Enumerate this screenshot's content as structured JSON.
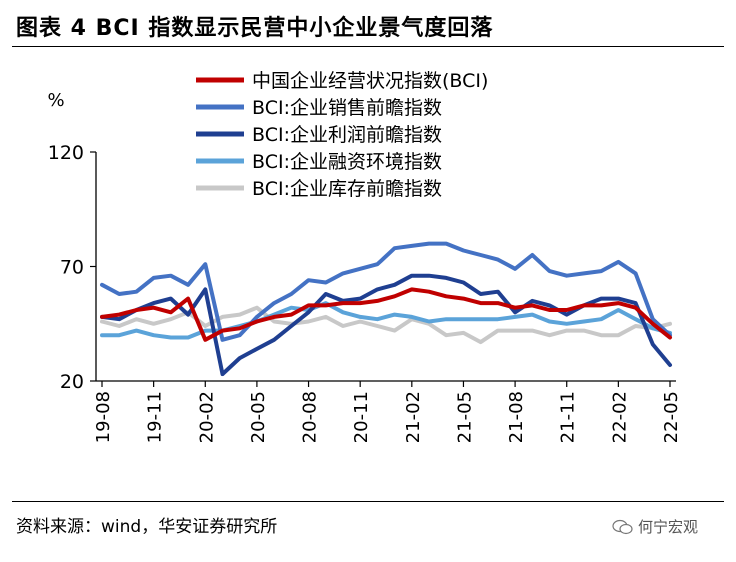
{
  "header": {
    "title": "图表 4 BCI 指数显示民营中小企业景气度回落"
  },
  "footer": {
    "source": "资料来源：wind，华安证券研究所",
    "watermark": "何宁宏观",
    "watermark_icon": "wechat-icon"
  },
  "colors": {
    "red": "#C00000",
    "blue": "#4472C4",
    "navy": "#1F3F91",
    "light_blue": "#5BA3D9",
    "gray": "#C8C8C8"
  },
  "chart_data": {
    "type": "line",
    "ylabel": "%",
    "ylim": [
      20,
      120
    ],
    "yticks": [
      20,
      70,
      120
    ],
    "legend_position": "top",
    "x": [
      "19-08",
      "19-09",
      "19-10",
      "19-11",
      "19-12",
      "20-01",
      "20-02",
      "20-03",
      "20-04",
      "20-05",
      "20-06",
      "20-07",
      "20-08",
      "20-09",
      "20-10",
      "20-11",
      "20-12",
      "21-01",
      "21-02",
      "21-03",
      "21-04",
      "21-05",
      "21-06",
      "21-07",
      "21-08",
      "21-09",
      "21-10",
      "21-11",
      "21-12",
      "22-01",
      "22-02",
      "22-03",
      "22-04",
      "22-05"
    ],
    "xticks": [
      "19-08",
      "19-11",
      "20-02",
      "20-05",
      "20-08",
      "20-11",
      "21-02",
      "21-05",
      "21-08",
      "21-11",
      "22-02",
      "22-05"
    ],
    "series": [
      {
        "name": "中国企业经营状况指数(BCI)",
        "color": "#C00000",
        "values": [
          48,
          49,
          51,
          52,
          50,
          56,
          38,
          42,
          43,
          46,
          48,
          49,
          53,
          53,
          54,
          54,
          55,
          57,
          60,
          59,
          57,
          56,
          54,
          54,
          52,
          53,
          51,
          51,
          53,
          53,
          54,
          52,
          45,
          39
        ]
      },
      {
        "name": "BCI:企业销售前瞻指数",
        "color": "#4472C4",
        "values": [
          62,
          58,
          59,
          65,
          66,
          62,
          71,
          38,
          40,
          48,
          54,
          58,
          64,
          63,
          67,
          69,
          71,
          78,
          79,
          80,
          80,
          77,
          75,
          73,
          69,
          75,
          68,
          66,
          67,
          68,
          72,
          67,
          47,
          40
        ]
      },
      {
        "name": "BCI:企业利润前瞻指数",
        "color": "#1F3F91",
        "values": [
          48,
          47,
          51,
          54,
          56,
          49,
          60,
          23,
          30,
          34,
          38,
          44,
          50,
          58,
          55,
          56,
          60,
          62,
          66,
          66,
          65,
          63,
          58,
          59,
          50,
          55,
          53,
          49,
          53,
          56,
          56,
          54,
          36,
          27
        ]
      },
      {
        "name": "BCI:企业融资环境指数",
        "color": "#5BA3D9",
        "values": [
          40,
          40,
          42,
          40,
          39,
          39,
          42,
          42,
          44,
          46,
          49,
          52,
          51,
          54,
          50,
          48,
          47,
          49,
          48,
          46,
          47,
          47,
          47,
          47,
          48,
          49,
          46,
          45,
          46,
          47,
          51,
          47,
          43,
          41
        ]
      },
      {
        "name": "BCI:企业库存前瞻指数",
        "color": "#C8C8C8",
        "values": [
          46,
          44,
          47,
          45,
          47,
          50,
          44,
          48,
          49,
          52,
          46,
          45,
          46,
          48,
          44,
          46,
          44,
          42,
          47,
          45,
          40,
          41,
          37,
          42,
          42,
          42,
          40,
          42,
          42,
          40,
          40,
          44,
          43,
          45
        ]
      }
    ]
  }
}
